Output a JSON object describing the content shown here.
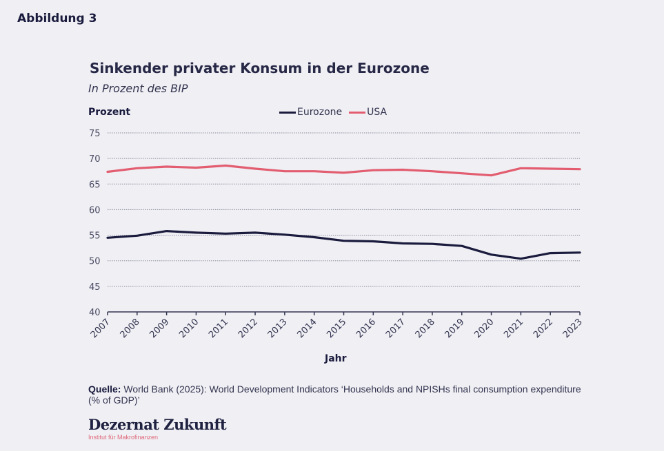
{
  "figure_label": "Abbildung 3",
  "source_label": "Quelle:",
  "source_text": "World Bank (2025): World Development Indicators ‘Households and NPISHs final consumption expenditure (% of GDP)’",
  "brand": {
    "name": "Dezernat Zukunft",
    "subtitle": "Institut für Makrofinanzen"
  },
  "chart_data": {
    "type": "line",
    "title": "Sinkender privater Konsum in der Eurozone",
    "subtitle": "In Prozent des BIP",
    "xlabel": "Jahr",
    "ylabel": "Prozent",
    "ylim": [
      40,
      75
    ],
    "yticks": [
      40,
      45,
      50,
      55,
      60,
      65,
      70,
      75
    ],
    "grid": true,
    "legend_position": "top-center",
    "x": [
      "2007",
      "2008",
      "2009",
      "2010",
      "2011",
      "2012",
      "2013",
      "2014",
      "2015",
      "2016",
      "2017",
      "2018",
      "2019",
      "2020",
      "2021",
      "2022",
      "2023"
    ],
    "series": [
      {
        "name": "Eurozone",
        "color": "#1a1b3d",
        "values": [
          54.5,
          54.9,
          55.8,
          55.5,
          55.3,
          55.5,
          55.1,
          54.6,
          53.9,
          53.8,
          53.4,
          53.3,
          52.9,
          51.2,
          50.4,
          51.5,
          51.6
        ]
      },
      {
        "name": "USA",
        "color": "#e35d70",
        "values": [
          67.4,
          68.1,
          68.4,
          68.2,
          68.6,
          68.0,
          67.5,
          67.5,
          67.2,
          67.7,
          67.8,
          67.5,
          67.1,
          66.7,
          68.1,
          68.0,
          67.9
        ]
      }
    ]
  }
}
